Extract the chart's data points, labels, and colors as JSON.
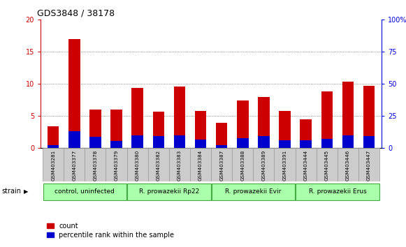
{
  "title": "GDS3848 / 38178",
  "samples": [
    "GSM403281",
    "GSM403377",
    "GSM403378",
    "GSM403379",
    "GSM403380",
    "GSM403382",
    "GSM403383",
    "GSM403384",
    "GSM403387",
    "GSM403388",
    "GSM403389",
    "GSM403391",
    "GSM403444",
    "GSM403445",
    "GSM403446",
    "GSM403447"
  ],
  "count_values": [
    3.4,
    17.0,
    6.0,
    6.0,
    9.4,
    5.7,
    9.6,
    5.8,
    4.0,
    7.4,
    8.0,
    5.8,
    4.5,
    8.8,
    10.4,
    9.7
  ],
  "percentile_values": [
    0.45,
    2.6,
    1.8,
    1.1,
    2.0,
    1.9,
    2.0,
    1.3,
    0.5,
    1.6,
    1.9,
    1.2,
    1.2,
    1.5,
    2.0,
    1.9
  ],
  "count_color": "#cc0000",
  "percentile_color": "#0000cc",
  "ylim_left": [
    0,
    20
  ],
  "ylim_right": [
    0,
    100
  ],
  "yticks_left": [
    0,
    5,
    10,
    15,
    20
  ],
  "yticks_right": [
    0,
    25,
    50,
    75,
    100
  ],
  "bar_width": 0.55,
  "groups": [
    {
      "label": "control, uninfected",
      "indices": [
        0,
        1,
        2,
        3
      ]
    },
    {
      "label": "R. prowazekii Rp22",
      "indices": [
        4,
        5,
        6,
        7
      ]
    },
    {
      "label": "R. prowazekii Evir",
      "indices": [
        8,
        9,
        10,
        11
      ]
    },
    {
      "label": "R. prowazekii Erus",
      "indices": [
        12,
        13,
        14,
        15
      ]
    }
  ],
  "group_color": "#aaffaa",
  "group_edge_color": "#44aa44",
  "legend_count": "count",
  "legend_percentile": "percentile rank within the sample",
  "strain_label": "strain",
  "sample_box_color": "#cccccc",
  "sample_box_edge": "#999999",
  "plot_bg": "#ffffff",
  "right_axis_color": "#0000dd",
  "left_axis_color": "#cc0000",
  "grid_color": "#666666"
}
